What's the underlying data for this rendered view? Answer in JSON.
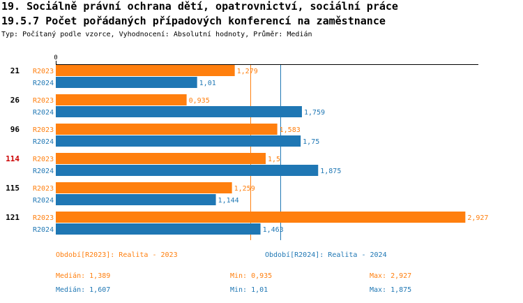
{
  "title_line1": "19. Sociálně právní ochrana dětí, opatrovnictví, sociální práce",
  "title_line2": "19.5.7 Počet pořádaných případových konferencí na zaměstnance",
  "subtitle": "Typ: Počítaný podle vzorce, Vyhodnocení: Absolutní hodnoty, Průměr: Medián",
  "colors": {
    "r2023": "#ff7f0e",
    "r2024": "#1f77b4",
    "highlight": "#cc0000"
  },
  "chart_data": {
    "type": "bar",
    "orientation": "horizontal",
    "x_axis_zero_label": "0",
    "xlim": [
      0,
      3.02
    ],
    "categories": [
      {
        "label": "21",
        "highlight": false
      },
      {
        "label": "26",
        "highlight": false
      },
      {
        "label": "96",
        "highlight": false
      },
      {
        "label": "114",
        "highlight": true
      },
      {
        "label": "115",
        "highlight": false
      },
      {
        "label": "121",
        "highlight": false
      }
    ],
    "series": [
      {
        "name": "R2023",
        "color": "#ff7f0e",
        "values": [
          1.279,
          0.935,
          1.583,
          1.5,
          1.259,
          2.927
        ],
        "value_labels": [
          "1,279",
          "0,935",
          "1,583",
          "1,5",
          "1,259",
          "2,927"
        ]
      },
      {
        "name": "R2024",
        "color": "#1f77b4",
        "values": [
          1.01,
          1.759,
          1.75,
          1.875,
          1.144,
          1.463
        ],
        "value_labels": [
          "1,01",
          "1,759",
          "1,75",
          "1,875",
          "1,144",
          "1,463"
        ]
      }
    ],
    "reference_lines": [
      {
        "series": "R2023",
        "name": "Medián",
        "value": 1.389
      },
      {
        "series": "R2024",
        "name": "Medián",
        "value": 1.607
      }
    ]
  },
  "legend": {
    "r2023": "Období[R2023]: Realita - 2023",
    "r2024": "Období[R2024]: Realita - 2024"
  },
  "stats": {
    "r2023": {
      "median": "Medián: 1,389",
      "min": "Min: 0,935",
      "max": "Max: 2,927"
    },
    "r2024": {
      "median": "Medián: 1,607",
      "min": "Min: 1,01",
      "max": "Max: 1,875"
    }
  }
}
